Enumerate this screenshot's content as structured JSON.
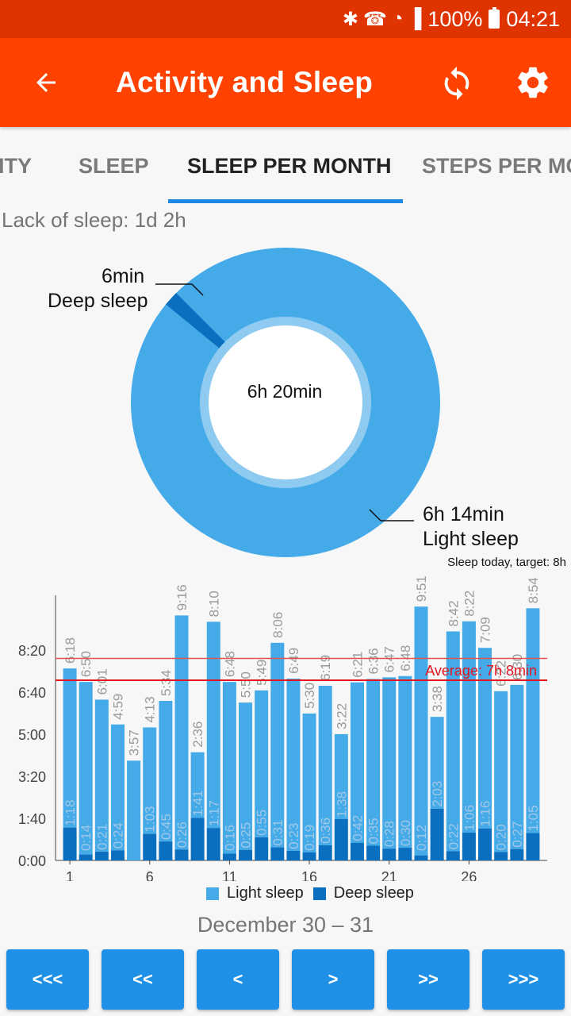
{
  "status_bar": {
    "battery": "100%",
    "time": "04:21"
  },
  "app_bar": {
    "title": "Activity and Sleep"
  },
  "tabs": [
    "ITY",
    "SLEEP",
    "SLEEP PER MONTH",
    "STEPS PER MO"
  ],
  "active_tab": "SLEEP PER MONTH",
  "summary": {
    "lack_of_sleep": "Lack of sleep: 1d 2h"
  },
  "donut": {
    "center_label": "6h 20min",
    "deep_value": "6min",
    "deep_label": "Deep sleep",
    "light_value": "6h 14min",
    "light_label": "Light sleep",
    "deep_minutes": 6,
    "light_minutes": 374
  },
  "target_note": "Sleep today, target: 8h",
  "colors": {
    "light": "#45aae8",
    "deep": "#0a6fbe",
    "accent": "#ff4200",
    "status": "#e03400",
    "average_line": "#e3141e",
    "target_line": "#e35050"
  },
  "chart_data": {
    "type": "bar",
    "stacked": true,
    "x": [
      1,
      2,
      3,
      4,
      5,
      6,
      7,
      8,
      9,
      10,
      11,
      12,
      13,
      14,
      15,
      16,
      17,
      18,
      19,
      20,
      21,
      22,
      23,
      24,
      25,
      26,
      27,
      28,
      29,
      30
    ],
    "x_ticks": [
      "1",
      "6",
      "11",
      "16",
      "21",
      "26"
    ],
    "y_ticks": [
      "0:00",
      "1:40",
      "3:20",
      "5:00",
      "6:40",
      "8:20"
    ],
    "ylim_minutes": [
      0,
      660
    ],
    "series": [
      {
        "name": "Light sleep",
        "labels": [
          "6:18",
          "6:50",
          "6:01",
          "4:59",
          "3:57",
          "4:13",
          "5:34",
          "9:16",
          "2:36",
          "8:10",
          "6:48",
          "5:50",
          "5:49",
          "8:06",
          "6:49",
          "5:30",
          "6:19",
          "3:22",
          "6:21",
          "6:36",
          "6:47",
          "6:48",
          "9:51",
          "3:38",
          "8:42",
          "8:22",
          "7:09",
          "6:22",
          "6:30",
          "8:54"
        ],
        "values_minutes": [
          378,
          410,
          361,
          299,
          237,
          253,
          334,
          556,
          156,
          490,
          408,
          350,
          349,
          486,
          409,
          330,
          379,
          202,
          381,
          396,
          407,
          408,
          591,
          218,
          522,
          502,
          429,
          382,
          390,
          534
        ]
      },
      {
        "name": "Deep sleep",
        "labels": [
          "1:18",
          "0:14",
          "0:21",
          "0:24",
          "",
          "1:03",
          "0:45",
          "0:26",
          "1:41",
          "1:17",
          "0:16",
          "0:25",
          "0:55",
          "0:31",
          "0:23",
          "0:19",
          "0:36",
          "1:38",
          "0:42",
          "0:35",
          "0:28",
          "0:30",
          "0:12",
          "2:03",
          "0:22",
          "1:06",
          "1:16",
          "0:20",
          "0:27",
          "1:05"
        ],
        "values_minutes": [
          78,
          14,
          21,
          24,
          0,
          63,
          45,
          26,
          101,
          77,
          16,
          25,
          55,
          31,
          23,
          19,
          36,
          98,
          42,
          35,
          28,
          30,
          12,
          123,
          22,
          66,
          76,
          20,
          27,
          65
        ]
      }
    ],
    "average_label": "Average: 7h 8min",
    "average_minutes": 428,
    "target_minutes": 480,
    "legend": [
      "Light sleep",
      "Deep sleep"
    ],
    "legend_position": "bottom"
  },
  "date_range": "December 30 – 31",
  "nav_buttons": [
    "<<<",
    "<<",
    "<",
    ">",
    ">>",
    ">>>"
  ]
}
